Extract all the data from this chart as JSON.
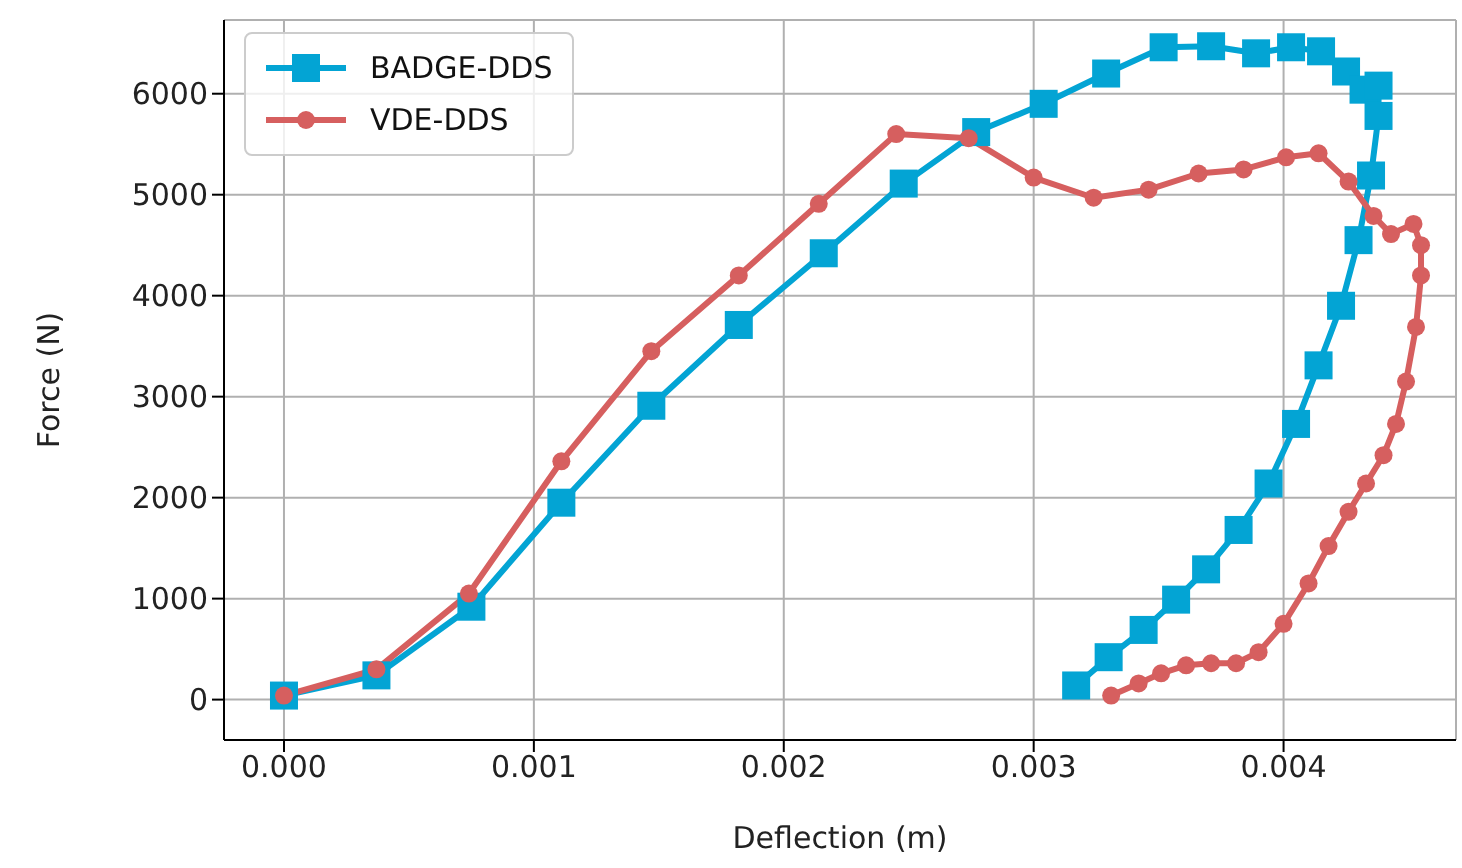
{
  "chart_data": {
    "type": "line",
    "xlabel": "Deflection (m)",
    "ylabel": "Force (N)",
    "xlim": [
      -0.00024,
      0.00469
    ],
    "ylim": [
      -400,
      6730
    ],
    "xticks": [
      {
        "value": 0,
        "label": "0.000"
      },
      {
        "value": 0.001,
        "label": "0.001"
      },
      {
        "value": 0.002,
        "label": "0.002"
      },
      {
        "value": 0.003,
        "label": "0.003"
      },
      {
        "value": 0.004,
        "label": "0.004"
      }
    ],
    "yticks": [
      0,
      1000,
      2000,
      3000,
      4000,
      5000,
      6000
    ],
    "grid": true,
    "legend": "top left",
    "line_style": "solid",
    "series": [
      {
        "name": "BADGE-DDS",
        "color": "#03a4d4",
        "marker": "square",
        "x": [
          0,
          0.00037,
          0.00075,
          0.00111,
          0.00147,
          0.00182,
          0.00216,
          0.00248,
          0.00277,
          0.00304,
          0.00329,
          0.00352,
          0.00371,
          0.00389,
          0.00403,
          0.00415,
          0.00425,
          0.00432,
          0.00438,
          0.00438,
          0.00435,
          0.0043,
          0.00423,
          0.00414,
          0.00405,
          0.00394,
          0.00382,
          0.00369,
          0.00357,
          0.00344,
          0.0033,
          0.00317
        ],
        "values": [
          40,
          240,
          920,
          1950,
          2910,
          3710,
          4420,
          5110,
          5620,
          5900,
          6200,
          6460,
          6470,
          6400,
          6460,
          6420,
          6220,
          6040,
          6080,
          5780,
          5190,
          4550,
          3900,
          3310,
          2730,
          2140,
          1680,
          1290,
          990,
          690,
          420,
          140
        ]
      },
      {
        "name": "VDE-DDS",
        "color": "#d65f5f",
        "marker": "circle",
        "x": [
          0,
          0.00037,
          0.00074,
          0.00111,
          0.00147,
          0.00182,
          0.00214,
          0.00245,
          0.00274,
          0.003,
          0.00324,
          0.00346,
          0.00366,
          0.00384,
          0.00401,
          0.00414,
          0.00426,
          0.00436,
          0.00443,
          0.00452,
          0.00455,
          0.00455,
          0.00453,
          0.00449,
          0.00445,
          0.0044,
          0.00433,
          0.00426,
          0.00418,
          0.0041,
          0.004,
          0.0039,
          0.00381,
          0.00371,
          0.00361,
          0.00351,
          0.00342,
          0.00331
        ],
        "values": [
          40,
          300,
          1050,
          2360,
          3450,
          4200,
          4910,
          5600,
          5560,
          5170,
          4970,
          5050,
          5210,
          5250,
          5370,
          5410,
          5130,
          4790,
          4610,
          4710,
          4500,
          4200,
          3690,
          3150,
          2730,
          2420,
          2140,
          1860,
          1520,
          1150,
          750,
          470,
          360,
          360,
          340,
          260,
          160,
          40
        ]
      }
    ]
  }
}
